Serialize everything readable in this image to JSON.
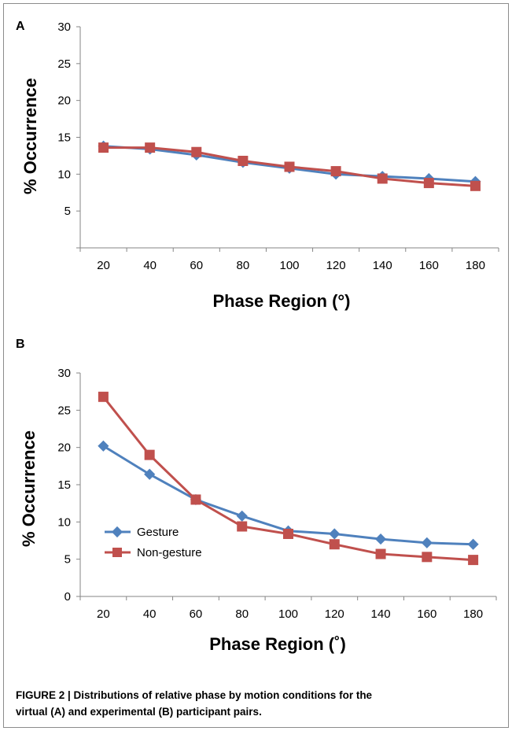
{
  "chart_data": [
    {
      "panel": "A",
      "type": "line",
      "categories": [
        20,
        40,
        60,
        80,
        100,
        120,
        140,
        160,
        180
      ],
      "xlabel": "Phase Region (°)",
      "ylabel": "% Occurrence",
      "yticks": [
        "5",
        "10",
        "15",
        "20",
        "25",
        "30"
      ],
      "ylim": [
        0,
        30
      ],
      "legend": "none",
      "series": [
        {
          "values": [
            13.8,
            13.4,
            12.6,
            11.6,
            10.8,
            10.0,
            9.7,
            9.4,
            9.0
          ],
          "color": "#4f81bd",
          "marker": "diamond"
        },
        {
          "values": [
            13.6,
            13.6,
            13.0,
            11.8,
            11.0,
            10.4,
            9.4,
            8.8,
            8.4
          ],
          "color": "#c0504d",
          "marker": "square"
        }
      ]
    },
    {
      "panel": "B",
      "type": "line",
      "categories": [
        20,
        40,
        60,
        80,
        100,
        120,
        140,
        160,
        180
      ],
      "xlabel": "Phase Region (˚)",
      "ylabel": "% Occurrence",
      "yticks": [
        "0",
        "5",
        "10",
        "15",
        "20",
        "25",
        "30"
      ],
      "ylim": [
        0,
        30
      ],
      "legend": "bottom-left",
      "series": [
        {
          "name": "Gesture",
          "values": [
            20.2,
            16.4,
            13.0,
            10.8,
            8.8,
            8.4,
            7.7,
            7.2,
            7.0
          ],
          "color": "#4f81bd",
          "marker": "diamond"
        },
        {
          "name": "Non-gesture",
          "values": [
            26.8,
            19.0,
            13.0,
            9.4,
            8.4,
            7.0,
            5.7,
            5.3,
            4.9
          ],
          "color": "#c0504d",
          "marker": "square"
        }
      ]
    }
  ],
  "caption": {
    "line1": "FIGURE 2 | Distributions of relative phase by motion conditions for the",
    "line2": "virtual (A) and experimental (B) participant pairs."
  }
}
